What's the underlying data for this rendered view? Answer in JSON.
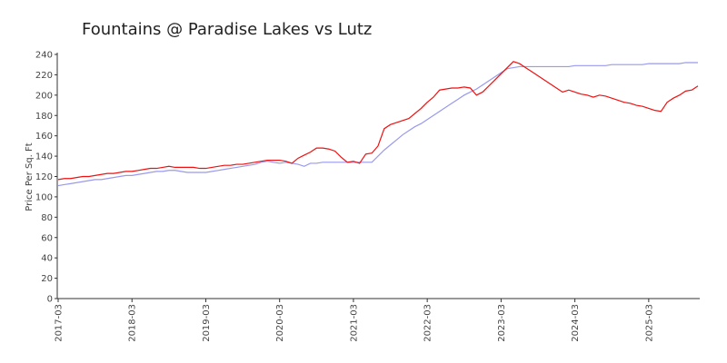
{
  "chart_data": {
    "type": "line",
    "title": "Fountains @ Paradise Lakes vs Lutz",
    "y_label": "Price Per Sq. Ft",
    "categories": [
      "2017-03",
      null,
      null,
      null,
      null,
      null,
      null,
      null,
      null,
      null,
      null,
      null,
      "2018-03",
      null,
      null,
      null,
      null,
      null,
      null,
      null,
      null,
      null,
      null,
      null,
      "2019-03",
      null,
      null,
      null,
      null,
      null,
      null,
      null,
      null,
      null,
      null,
      null,
      "2020-03",
      null,
      null,
      null,
      null,
      null,
      null,
      null,
      null,
      null,
      null,
      null,
      "2021-03",
      null,
      null,
      null,
      null,
      null,
      null,
      null,
      null,
      null,
      null,
      null,
      "2022-03",
      null,
      null,
      null,
      null,
      null,
      null,
      null,
      null,
      null,
      null,
      null,
      "2023-03",
      null,
      null,
      null,
      null,
      null,
      null,
      null,
      null,
      null,
      null,
      null,
      "2024-03",
      null,
      null,
      null,
      null,
      null,
      null,
      null,
      null,
      null,
      null,
      null,
      "2025-03",
      null,
      null,
      null,
      null,
      null,
      null,
      null,
      null
    ],
    "series": [
      {
        "color": "#ee1111",
        "values": [
          117,
          118,
          118,
          119,
          120,
          120,
          121,
          122,
          123,
          123,
          124,
          125,
          125,
          126,
          127,
          128,
          128,
          129,
          130,
          129,
          129,
          129,
          129,
          128,
          128,
          129,
          130,
          131,
          131,
          132,
          132,
          133,
          134,
          135,
          136,
          136,
          136,
          135,
          133,
          138,
          141,
          144,
          148,
          148,
          147,
          145,
          139,
          134,
          135,
          133,
          142,
          143,
          150,
          167,
          171,
          173,
          175,
          177,
          182,
          187,
          193,
          198,
          205,
          206,
          207,
          207,
          208,
          207,
          200,
          203,
          209,
          215,
          221,
          227,
          233,
          231,
          227,
          223,
          219,
          215,
          211,
          207,
          203,
          205,
          203,
          201,
          200,
          198,
          200,
          199,
          197,
          195,
          193,
          192,
          190,
          189,
          187,
          185,
          184,
          193,
          197,
          200,
          204,
          205,
          209
        ]
      },
      {
        "color": "#9999ee",
        "values": [
          111,
          112,
          113,
          114,
          115,
          116,
          117,
          117,
          118,
          119,
          120,
          121,
          121,
          122,
          123,
          124,
          125,
          125,
          126,
          126,
          125,
          124,
          124,
          124,
          124,
          125,
          126,
          127,
          128,
          129,
          130,
          131,
          132,
          134,
          135,
          134,
          133,
          134,
          133,
          132,
          130,
          133,
          133,
          134,
          134,
          134,
          134,
          134,
          134,
          134,
          134,
          134,
          140,
          146,
          151,
          156,
          161,
          165,
          169,
          172,
          176,
          180,
          184,
          188,
          192,
          196,
          200,
          203,
          206,
          210,
          214,
          218,
          222,
          226,
          227,
          228,
          228,
          228,
          228,
          228,
          228,
          228,
          228,
          228,
          229,
          229,
          229,
          229,
          229,
          229,
          230,
          230,
          230,
          230,
          230,
          230,
          231,
          231,
          231,
          231,
          231,
          231,
          232,
          232,
          232
        ]
      }
    ],
    "ylim": [
      0,
      240
    ],
    "yticks": [
      0,
      20,
      40,
      60,
      80,
      100,
      120,
      140,
      160,
      180,
      200,
      220,
      240
    ],
    "grid": false
  }
}
